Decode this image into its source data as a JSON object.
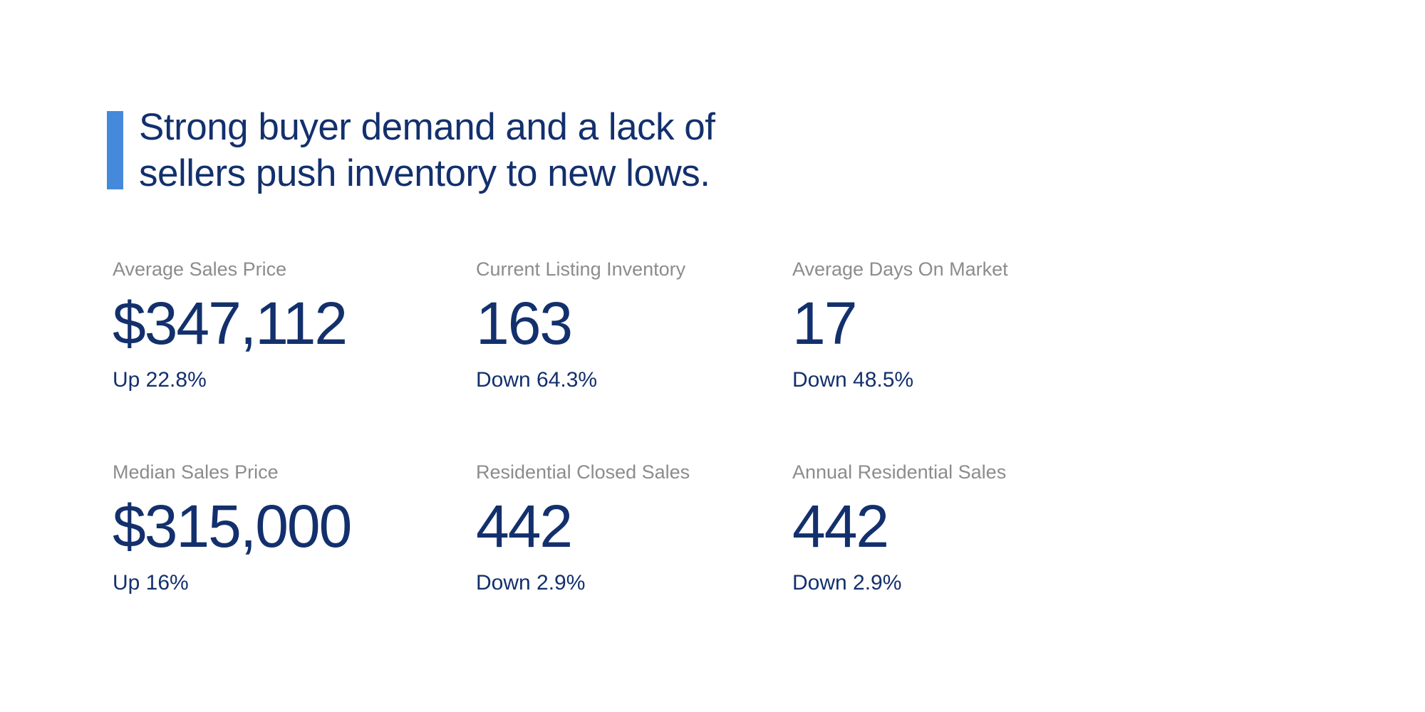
{
  "headline": {
    "line1": "Strong buyer demand and a lack of",
    "line2": "sellers push inventory to new lows."
  },
  "colors": {
    "accent_blue": "#4589DB",
    "navy_text": "#13306D",
    "label_gray": "#8C8C8C",
    "background": "#FFFFFF"
  },
  "stats": [
    {
      "label": "Average Sales Price",
      "value": "$347,112",
      "change": "Up 22.8%",
      "direction": "up"
    },
    {
      "label": "Current Listing Inventory",
      "value": "163",
      "change": "Down 64.3%",
      "direction": "down"
    },
    {
      "label": "Average Days On Market",
      "value": "17",
      "change": "Down 48.5%",
      "direction": "down"
    },
    {
      "label": "Median Sales Price",
      "value": "$315,000",
      "change": "Up 16%",
      "direction": "up"
    },
    {
      "label": "Residential Closed Sales",
      "value": "442",
      "change": "Down 2.9%",
      "direction": "down"
    },
    {
      "label": "Annual Residential Sales",
      "value": "442",
      "change": "Down 2.9%",
      "direction": "down"
    }
  ]
}
